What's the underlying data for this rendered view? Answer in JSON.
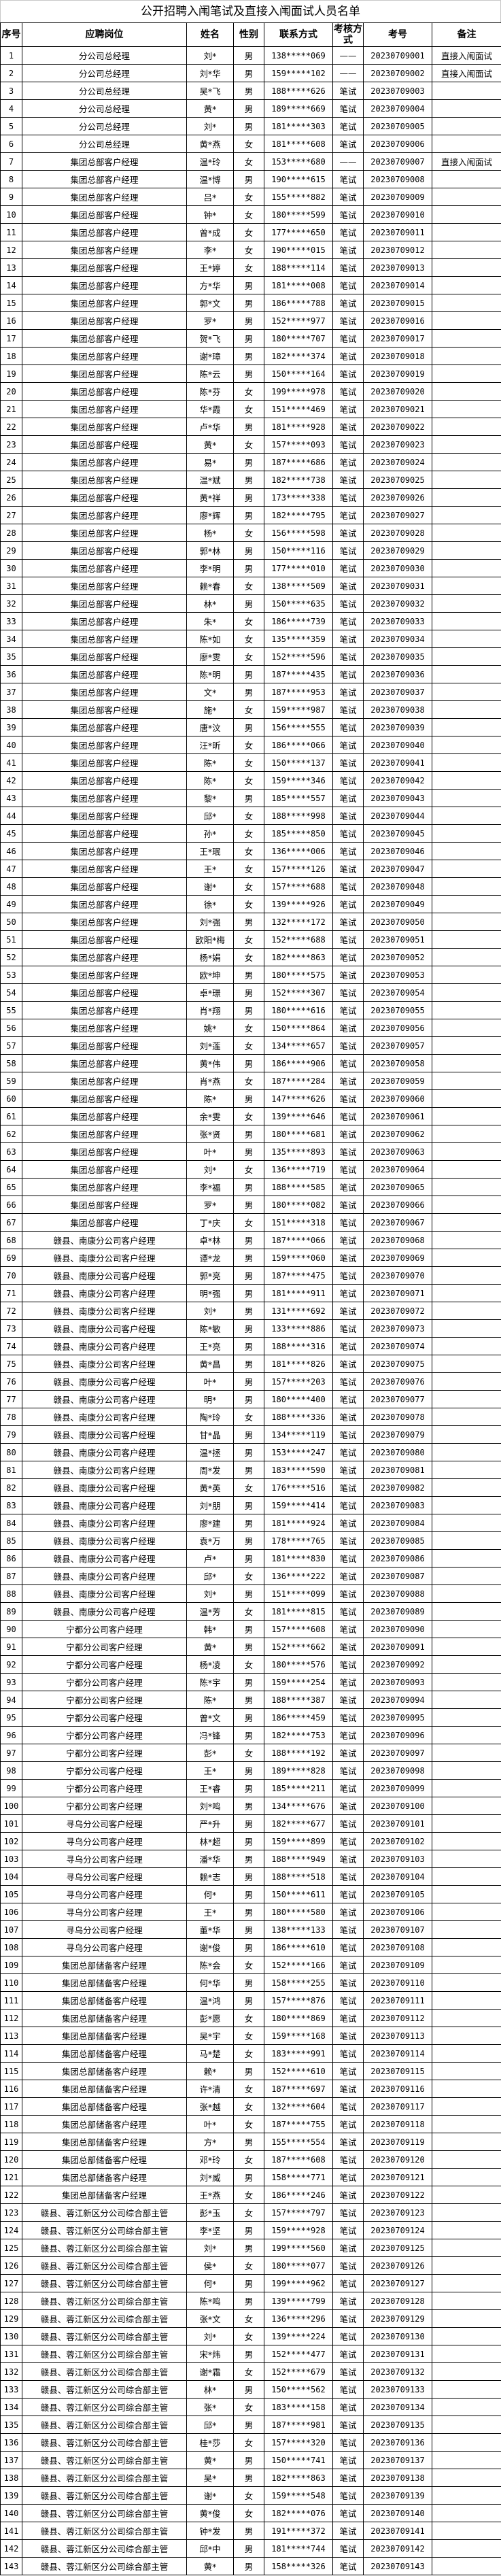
{
  "title": "公开招聘入闱笔试及直接入闱面试人员名单",
  "headers": [
    "序号",
    "应聘岗位",
    "姓名",
    "性别",
    "联系方式",
    "考核方式",
    "考号",
    "备注"
  ],
  "rows": [
    [
      "1",
      "分公司总经理",
      "刘*",
      "男",
      "138*****069",
      "——",
      "20230709001",
      "直接入闱面试"
    ],
    [
      "2",
      "分公司总经理",
      "刘*华",
      "男",
      "159*****102",
      "——",
      "20230709002",
      "直接入闱面试"
    ],
    [
      "3",
      "分公司总经理",
      "吴*飞",
      "男",
      "188*****626",
      "笔试",
      "20230709003",
      ""
    ],
    [
      "4",
      "分公司总经理",
      "黄*",
      "男",
      "189*****669",
      "笔试",
      "20230709004",
      ""
    ],
    [
      "5",
      "分公司总经理",
      "刘*",
      "男",
      "181*****303",
      "笔试",
      "20230709005",
      ""
    ],
    [
      "6",
      "分公司总经理",
      "黄*燕",
      "女",
      "181*****608",
      "笔试",
      "20230709006",
      ""
    ],
    [
      "7",
      "集团总部客户经理",
      "温*玲",
      "女",
      "153*****680",
      "——",
      "20230709007",
      "直接入闱面试"
    ],
    [
      "8",
      "集团总部客户经理",
      "温*博",
      "男",
      "190*****615",
      "笔试",
      "20230709008",
      ""
    ],
    [
      "9",
      "集团总部客户经理",
      "吕*",
      "女",
      "155*****882",
      "笔试",
      "20230709009",
      ""
    ],
    [
      "10",
      "集团总部客户经理",
      "钟*",
      "女",
      "180*****599",
      "笔试",
      "20230709010",
      ""
    ],
    [
      "11",
      "集团总部客户经理",
      "曾*成",
      "女",
      "177*****650",
      "笔试",
      "20230709011",
      ""
    ],
    [
      "12",
      "集团总部客户经理",
      "李*",
      "女",
      "190*****015",
      "笔试",
      "20230709012",
      ""
    ],
    [
      "13",
      "集团总部客户经理",
      "王*婷",
      "女",
      "188*****114",
      "笔试",
      "20230709013",
      ""
    ],
    [
      "14",
      "集团总部客户经理",
      "方*华",
      "男",
      "181*****008",
      "笔试",
      "20230709014",
      ""
    ],
    [
      "15",
      "集团总部客户经理",
      "郭*文",
      "男",
      "186*****788",
      "笔试",
      "20230709015",
      ""
    ],
    [
      "16",
      "集团总部客户经理",
      "罗*",
      "男",
      "152*****977",
      "笔试",
      "20230709016",
      ""
    ],
    [
      "17",
      "集团总部客户经理",
      "贺*飞",
      "男",
      "180*****707",
      "笔试",
      "20230709017",
      ""
    ],
    [
      "18",
      "集团总部客户经理",
      "谢*璋",
      "男",
      "182*****374",
      "笔试",
      "20230709018",
      ""
    ],
    [
      "19",
      "集团总部客户经理",
      "陈*云",
      "男",
      "150*****164",
      "笔试",
      "20230709019",
      ""
    ],
    [
      "20",
      "集团总部客户经理",
      "陈*芬",
      "女",
      "199*****978",
      "笔试",
      "20230709020",
      ""
    ],
    [
      "21",
      "集团总部客户经理",
      "华*霞",
      "女",
      "151*****469",
      "笔试",
      "20230709021",
      ""
    ],
    [
      "22",
      "集团总部客户经理",
      "卢*华",
      "男",
      "181*****928",
      "笔试",
      "20230709022",
      ""
    ],
    [
      "23",
      "集团总部客户经理",
      "黄*",
      "女",
      "157*****093",
      "笔试",
      "20230709023",
      ""
    ],
    [
      "24",
      "集团总部客户经理",
      "易*",
      "男",
      "187*****686",
      "笔试",
      "20230709024",
      ""
    ],
    [
      "25",
      "集团总部客户经理",
      "温*斌",
      "男",
      "182*****738",
      "笔试",
      "20230709025",
      ""
    ],
    [
      "26",
      "集团总部客户经理",
      "黄*祥",
      "男",
      "173*****338",
      "笔试",
      "20230709026",
      ""
    ],
    [
      "27",
      "集团总部客户经理",
      "廖*辉",
      "男",
      "182*****795",
      "笔试",
      "20230709027",
      ""
    ],
    [
      "28",
      "集团总部客户经理",
      "杨*",
      "女",
      "156*****598",
      "笔试",
      "20230709028",
      ""
    ],
    [
      "29",
      "集团总部客户经理",
      "郭*林",
      "男",
      "150*****116",
      "笔试",
      "20230709029",
      ""
    ],
    [
      "30",
      "集团总部客户经理",
      "李*明",
      "男",
      "177*****010",
      "笔试",
      "20230709030",
      ""
    ],
    [
      "31",
      "集团总部客户经理",
      "赖*春",
      "女",
      "138*****509",
      "笔试",
      "20230709031",
      ""
    ],
    [
      "32",
      "集团总部客户经理",
      "林*",
      "男",
      "150*****635",
      "笔试",
      "20230709032",
      ""
    ],
    [
      "33",
      "集团总部客户经理",
      "朱*",
      "女",
      "186*****739",
      "笔试",
      "20230709033",
      ""
    ],
    [
      "34",
      "集团总部客户经理",
      "陈*如",
      "女",
      "135*****359",
      "笔试",
      "20230709034",
      ""
    ],
    [
      "35",
      "集团总部客户经理",
      "廖*雯",
      "女",
      "152*****596",
      "笔试",
      "20230709035",
      ""
    ],
    [
      "36",
      "集团总部客户经理",
      "陈*明",
      "男",
      "187*****435",
      "笔试",
      "20230709036",
      ""
    ],
    [
      "37",
      "集团总部客户经理",
      "文*",
      "男",
      "187*****953",
      "笔试",
      "20230709037",
      ""
    ],
    [
      "38",
      "集团总部客户经理",
      "施*",
      "女",
      "159*****987",
      "笔试",
      "20230709038",
      ""
    ],
    [
      "39",
      "集团总部客户经理",
      "唐*汶",
      "男",
      "156*****555",
      "笔试",
      "20230709039",
      ""
    ],
    [
      "40",
      "集团总部客户经理",
      "汪*昕",
      "女",
      "186*****066",
      "笔试",
      "20230709040",
      ""
    ],
    [
      "41",
      "集团总部客户经理",
      "陈*",
      "女",
      "150*****137",
      "笔试",
      "20230709041",
      ""
    ],
    [
      "42",
      "集团总部客户经理",
      "陈*",
      "女",
      "159*****346",
      "笔试",
      "20230709042",
      ""
    ],
    [
      "43",
      "集团总部客户经理",
      "黎*",
      "男",
      "185*****557",
      "笔试",
      "20230709043",
      ""
    ],
    [
      "44",
      "集团总部客户经理",
      "邱*",
      "女",
      "188*****998",
      "笔试",
      "20230709044",
      ""
    ],
    [
      "45",
      "集团总部客户经理",
      "孙*",
      "女",
      "185*****850",
      "笔试",
      "20230709045",
      ""
    ],
    [
      "46",
      "集团总部客户经理",
      "王*珉",
      "女",
      "136*****006",
      "笔试",
      "20230709046",
      ""
    ],
    [
      "47",
      "集团总部客户经理",
      "王*",
      "女",
      "157*****126",
      "笔试",
      "20230709047",
      ""
    ],
    [
      "48",
      "集团总部客户经理",
      "谢*",
      "女",
      "157*****688",
      "笔试",
      "20230709048",
      ""
    ],
    [
      "49",
      "集团总部客户经理",
      "徐*",
      "女",
      "139*****926",
      "笔试",
      "20230709049",
      ""
    ],
    [
      "50",
      "集团总部客户经理",
      "刘*强",
      "男",
      "132*****172",
      "笔试",
      "20230709050",
      ""
    ],
    [
      "51",
      "集团总部客户经理",
      "欧阳*梅",
      "女",
      "152*****688",
      "笔试",
      "20230709051",
      ""
    ],
    [
      "52",
      "集团总部客户经理",
      "杨*娟",
      "女",
      "182*****863",
      "笔试",
      "20230709052",
      ""
    ],
    [
      "53",
      "集团总部客户经理",
      "欧*坤",
      "男",
      "180*****575",
      "笔试",
      "20230709053",
      ""
    ],
    [
      "54",
      "集团总部客户经理",
      "卓*璟",
      "男",
      "152*****307",
      "笔试",
      "20230709054",
      ""
    ],
    [
      "55",
      "集团总部客户经理",
      "肖*翔",
      "男",
      "180*****616",
      "笔试",
      "20230709055",
      ""
    ],
    [
      "56",
      "集团总部客户经理",
      "姚*",
      "女",
      "150*****864",
      "笔试",
      "20230709056",
      ""
    ],
    [
      "57",
      "集团总部客户经理",
      "刘*莲",
      "女",
      "134*****657",
      "笔试",
      "20230709057",
      ""
    ],
    [
      "58",
      "集团总部客户经理",
      "黄*伟",
      "男",
      "186*****906",
      "笔试",
      "20230709058",
      ""
    ],
    [
      "59",
      "集团总部客户经理",
      "肖*燕",
      "女",
      "187*****284",
      "笔试",
      "20230709059",
      ""
    ],
    [
      "60",
      "集团总部客户经理",
      "陈*",
      "男",
      "147*****626",
      "笔试",
      "20230709060",
      ""
    ],
    [
      "61",
      "集团总部客户经理",
      "余*雯",
      "女",
      "139*****646",
      "笔试",
      "20230709061",
      ""
    ],
    [
      "62",
      "集团总部客户经理",
      "张*贤",
      "男",
      "180*****681",
      "笔试",
      "20230709062",
      ""
    ],
    [
      "63",
      "集团总部客户经理",
      "叶*",
      "男",
      "135*****893",
      "笔试",
      "20230709063",
      ""
    ],
    [
      "64",
      "集团总部客户经理",
      "刘*",
      "女",
      "136*****719",
      "笔试",
      "20230709064",
      ""
    ],
    [
      "65",
      "集团总部客户经理",
      "李*福",
      "男",
      "188*****585",
      "笔试",
      "20230709065",
      ""
    ],
    [
      "66",
      "集团总部客户经理",
      "罗*",
      "男",
      "180*****082",
      "笔试",
      "20230709066",
      ""
    ],
    [
      "67",
      "集团总部客户经理",
      "丁*庆",
      "女",
      "151*****318",
      "笔试",
      "20230709067",
      ""
    ],
    [
      "68",
      "赣县、南康分公司客户经理",
      "卓*林",
      "男",
      "187*****066",
      "笔试",
      "20230709068",
      ""
    ],
    [
      "69",
      "赣县、南康分公司客户经理",
      "谭*龙",
      "男",
      "159*****060",
      "笔试",
      "20230709069",
      ""
    ],
    [
      "70",
      "赣县、南康分公司客户经理",
      "郭*亮",
      "男",
      "187*****475",
      "笔试",
      "20230709070",
      ""
    ],
    [
      "71",
      "赣县、南康分公司客户经理",
      "明*强",
      "男",
      "181*****911",
      "笔试",
      "20230709071",
      ""
    ],
    [
      "72",
      "赣县、南康分公司客户经理",
      "刘*",
      "男",
      "131*****692",
      "笔试",
      "20230709072",
      ""
    ],
    [
      "73",
      "赣县、南康分公司客户经理",
      "陈*敏",
      "男",
      "133*****886",
      "笔试",
      "20230709073",
      ""
    ],
    [
      "74",
      "赣县、南康分公司客户经理",
      "王*亮",
      "男",
      "188*****316",
      "笔试",
      "20230709074",
      ""
    ],
    [
      "75",
      "赣县、南康分公司客户经理",
      "黄*昌",
      "男",
      "181*****826",
      "笔试",
      "20230709075",
      ""
    ],
    [
      "76",
      "赣县、南康分公司客户经理",
      "叶*",
      "男",
      "157*****203",
      "笔试",
      "20230709076",
      ""
    ],
    [
      "77",
      "赣县、南康分公司客户经理",
      "明*",
      "男",
      "180*****400",
      "笔试",
      "20230709077",
      ""
    ],
    [
      "78",
      "赣县、南康分公司客户经理",
      "陶*玲",
      "女",
      "188*****336",
      "笔试",
      "20230709078",
      ""
    ],
    [
      "79",
      "赣县、南康分公司客户经理",
      "甘*晶",
      "男",
      "134*****119",
      "笔试",
      "20230709079",
      ""
    ],
    [
      "80",
      "赣县、南康分公司客户经理",
      "温*拯",
      "男",
      "153*****247",
      "笔试",
      "20230709080",
      ""
    ],
    [
      "81",
      "赣县、南康分公司客户经理",
      "周*发",
      "男",
      "183*****590",
      "笔试",
      "20230709081",
      ""
    ],
    [
      "82",
      "赣县、南康分公司客户经理",
      "黄*英",
      "女",
      "176*****516",
      "笔试",
      "20230709082",
      ""
    ],
    [
      "83",
      "赣县、南康分公司客户经理",
      "刘*朋",
      "男",
      "159*****414",
      "笔试",
      "20230709083",
      ""
    ],
    [
      "84",
      "赣县、南康分公司客户经理",
      "廖*建",
      "男",
      "181*****924",
      "笔试",
      "20230709084",
      ""
    ],
    [
      "85",
      "赣县、南康分公司客户经理",
      "袁*万",
      "男",
      "178*****765",
      "笔试",
      "20230709085",
      ""
    ],
    [
      "86",
      "赣县、南康分公司客户经理",
      "卢*",
      "男",
      "181*****830",
      "笔试",
      "20230709086",
      ""
    ],
    [
      "87",
      "赣县、南康分公司客户经理",
      "邱*",
      "女",
      "136*****222",
      "笔试",
      "20230709087",
      ""
    ],
    [
      "88",
      "赣县、南康分公司客户经理",
      "刘*",
      "男",
      "151*****099",
      "笔试",
      "20230709088",
      ""
    ],
    [
      "89",
      "赣县、南康分公司客户经理",
      "温*芳",
      "女",
      "181*****815",
      "笔试",
      "20230709089",
      ""
    ],
    [
      "90",
      "宁都分公司客户经理",
      "韩*",
      "男",
      "157*****608",
      "笔试",
      "20230709090",
      ""
    ],
    [
      "91",
      "宁都分公司客户经理",
      "黄*",
      "男",
      "152*****662",
      "笔试",
      "20230709091",
      ""
    ],
    [
      "92",
      "宁都分公司客户经理",
      "杨*凌",
      "女",
      "180*****576",
      "笔试",
      "20230709092",
      ""
    ],
    [
      "93",
      "宁都分公司客户经理",
      "陈*宇",
      "男",
      "159*****254",
      "笔试",
      "20230709093",
      ""
    ],
    [
      "94",
      "宁都分公司客户经理",
      "陈*",
      "男",
      "188*****387",
      "笔试",
      "20230709094",
      ""
    ],
    [
      "95",
      "宁都分公司客户经理",
      "曾*文",
      "男",
      "186*****459",
      "笔试",
      "20230709095",
      ""
    ],
    [
      "96",
      "宁都分公司客户经理",
      "冯*锋",
      "男",
      "182*****753",
      "笔试",
      "20230709096",
      ""
    ],
    [
      "97",
      "宁都分公司客户经理",
      "彭*",
      "女",
      "188*****192",
      "笔试",
      "20230709097",
      ""
    ],
    [
      "98",
      "宁都分公司客户经理",
      "王*",
      "男",
      "189*****828",
      "笔试",
      "20230709098",
      ""
    ],
    [
      "99",
      "宁都分公司客户经理",
      "王*睿",
      "男",
      "185*****211",
      "笔试",
      "20230709099",
      ""
    ],
    [
      "100",
      "宁都分公司客户经理",
      "刘*鸣",
      "男",
      "134*****676",
      "笔试",
      "20230709100",
      ""
    ],
    [
      "101",
      "寻乌分公司客户经理",
      "严*升",
      "男",
      "182*****677",
      "笔试",
      "20230709101",
      ""
    ],
    [
      "102",
      "寻乌分公司客户经理",
      "林*超",
      "男",
      "159*****899",
      "笔试",
      "20230709102",
      ""
    ],
    [
      "103",
      "寻乌分公司客户经理",
      "潘*华",
      "男",
      "188*****949",
      "笔试",
      "20230709103",
      ""
    ],
    [
      "104",
      "寻乌分公司客户经理",
      "赖*志",
      "男",
      "188*****518",
      "笔试",
      "20230709104",
      ""
    ],
    [
      "105",
      "寻乌分公司客户经理",
      "何*",
      "男",
      "150*****611",
      "笔试",
      "20230709105",
      ""
    ],
    [
      "106",
      "寻乌分公司客户经理",
      "王*",
      "男",
      "180*****580",
      "笔试",
      "20230709106",
      ""
    ],
    [
      "107",
      "寻乌分公司客户经理",
      "董*华",
      "男",
      "138*****133",
      "笔试",
      "20230709107",
      ""
    ],
    [
      "108",
      "寻乌分公司客户经理",
      "谢*俊",
      "男",
      "186*****610",
      "笔试",
      "20230709108",
      ""
    ],
    [
      "109",
      "集团总部储备客户经理",
      "陈*会",
      "女",
      "152*****166",
      "笔试",
      "20230709109",
      ""
    ],
    [
      "110",
      "集团总部储备客户经理",
      "何*华",
      "男",
      "158*****255",
      "笔试",
      "20230709110",
      ""
    ],
    [
      "111",
      "集团总部储备客户经理",
      "温*鸿",
      "男",
      "157*****876",
      "笔试",
      "20230709111",
      ""
    ],
    [
      "112",
      "集团总部储备客户经理",
      "彭*愿",
      "女",
      "180*****869",
      "笔试",
      "20230709112",
      ""
    ],
    [
      "113",
      "集团总部储备客户经理",
      "吴*宇",
      "女",
      "159*****168",
      "笔试",
      "20230709113",
      ""
    ],
    [
      "114",
      "集团总部储备客户经理",
      "马*楚",
      "女",
      "183*****991",
      "笔试",
      "20230709114",
      ""
    ],
    [
      "115",
      "集团总部储备客户经理",
      "赖*",
      "男",
      "152*****610",
      "笔试",
      "20230709115",
      ""
    ],
    [
      "116",
      "集团总部储备客户经理",
      "许*清",
      "女",
      "187*****697",
      "笔试",
      "20230709116",
      ""
    ],
    [
      "117",
      "集团总部储备客户经理",
      "张*越",
      "女",
      "132*****604",
      "笔试",
      "20230709117",
      ""
    ],
    [
      "118",
      "集团总部储备客户经理",
      "叶*",
      "女",
      "187*****755",
      "笔试",
      "20230709118",
      ""
    ],
    [
      "119",
      "集团总部储备客户经理",
      "方*",
      "男",
      "155*****554",
      "笔试",
      "20230709119",
      ""
    ],
    [
      "120",
      "集团总部储备客户经理",
      "邓*玲",
      "女",
      "187*****608",
      "笔试",
      "20230709120",
      ""
    ],
    [
      "121",
      "集团总部储备客户经理",
      "刘*威",
      "男",
      "158*****771",
      "笔试",
      "20230709121",
      ""
    ],
    [
      "122",
      "集团总部储备客户经理",
      "王*燕",
      "女",
      "186*****246",
      "笔试",
      "20230709122",
      ""
    ],
    [
      "123",
      "赣县、蓉江新区分公司综合部主管",
      "彭*玉",
      "女",
      "157*****797",
      "笔试",
      "20230709123",
      ""
    ],
    [
      "124",
      "赣县、蓉江新区分公司综合部主管",
      "李*坚",
      "男",
      "159*****928",
      "笔试",
      "20230709124",
      ""
    ],
    [
      "125",
      "赣县、蓉江新区分公司综合部主管",
      "刘*",
      "男",
      "199*****560",
      "笔试",
      "20230709125",
      ""
    ],
    [
      "126",
      "赣县、蓉江新区分公司综合部主管",
      "侯*",
      "女",
      "180*****077",
      "笔试",
      "20230709126",
      ""
    ],
    [
      "127",
      "赣县、蓉江新区分公司综合部主管",
      "何*",
      "男",
      "199*****962",
      "笔试",
      "20230709127",
      ""
    ],
    [
      "128",
      "赣县、蓉江新区分公司综合部主管",
      "陈*鸣",
      "男",
      "139*****799",
      "笔试",
      "20230709128",
      ""
    ],
    [
      "129",
      "赣县、蓉江新区分公司综合部主管",
      "张*文",
      "女",
      "136*****296",
      "笔试",
      "20230709129",
      ""
    ],
    [
      "130",
      "赣县、蓉江新区分公司综合部主管",
      "刘*",
      "女",
      "139*****224",
      "笔试",
      "20230709130",
      ""
    ],
    [
      "131",
      "赣县、蓉江新区分公司综合部主管",
      "宋*炜",
      "男",
      "152*****477",
      "笔试",
      "20230709131",
      ""
    ],
    [
      "132",
      "赣县、蓉江新区分公司综合部主管",
      "谢*霜",
      "女",
      "152*****679",
      "笔试",
      "20230709132",
      ""
    ],
    [
      "133",
      "赣县、蓉江新区分公司综合部主管",
      "林*",
      "男",
      "150*****562",
      "笔试",
      "20230709133",
      ""
    ],
    [
      "134",
      "赣县、蓉江新区分公司综合部主管",
      "张*",
      "女",
      "183*****158",
      "笔试",
      "20230709134",
      ""
    ],
    [
      "135",
      "赣县、蓉江新区分公司综合部主管",
      "邱*",
      "男",
      "187*****981",
      "笔试",
      "20230709135",
      ""
    ],
    [
      "136",
      "赣县、蓉江新区分公司综合部主管",
      "桂*莎",
      "女",
      "157*****320",
      "笔试",
      "20230709136",
      ""
    ],
    [
      "137",
      "赣县、蓉江新区分公司综合部主管",
      "黄*",
      "男",
      "150*****741",
      "笔试",
      "20230709137",
      ""
    ],
    [
      "138",
      "赣县、蓉江新区分公司综合部主管",
      "吴*",
      "男",
      "182*****863",
      "笔试",
      "20230709138",
      ""
    ],
    [
      "139",
      "赣县、蓉江新区分公司综合部主管",
      "谢*",
      "女",
      "159*****548",
      "笔试",
      "20230709139",
      ""
    ],
    [
      "140",
      "赣县、蓉江新区分公司综合部主管",
      "黄*俊",
      "女",
      "182*****076",
      "笔试",
      "20230709140",
      ""
    ],
    [
      "141",
      "赣县、蓉江新区分公司综合部主管",
      "钟*发",
      "男",
      "191*****372",
      "笔试",
      "20230709141",
      ""
    ],
    [
      "142",
      "赣县、蓉江新区分公司综合部主管",
      "邱*中",
      "男",
      "181*****744",
      "笔试",
      "20230709142",
      ""
    ],
    [
      "143",
      "赣县、蓉江新区分公司综合部主管",
      "黄*",
      "男",
      "158*****326",
      "笔试",
      "20230709143",
      ""
    ]
  ]
}
